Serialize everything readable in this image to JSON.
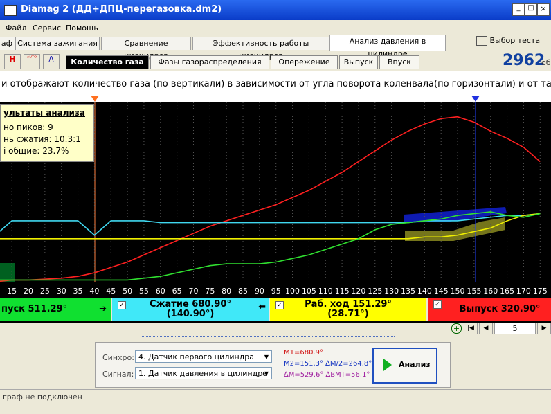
{
  "window": {
    "title": "Diamag 2 (ДД+ДПЦ-перегазовка.dm2)"
  },
  "menu": [
    "Файл",
    "Сервис",
    "Помощь"
  ],
  "tabs": [
    "аф",
    "Система зажигания",
    "Сравнение цилиндров",
    "Эффективность работы цилиндров",
    "Анализ давления в цилиндре"
  ],
  "test_button": "Выбор теста",
  "subtabs": [
    "Количество газа",
    "Фазы газораспределения",
    "Опережение",
    "Выпуск",
    "Впуск"
  ],
  "rpm": {
    "value": "2962",
    "unit": "об."
  },
  "description": "и отображают количество газа (по вертикали) в зависимости от угла поворота коленвала(по горизонтали) и от такта (ц",
  "info_box": {
    "title": "ультаты анализа",
    "lines": [
      "но пиков: 9",
      "нь сжатия: 10.3:1",
      "і общие: 23.7%"
    ]
  },
  "chart_data": {
    "type": "line",
    "x": [
      10,
      15,
      20,
      25,
      30,
      35,
      40,
      45,
      50,
      55,
      60,
      65,
      70,
      75,
      80,
      85,
      90,
      95,
      100,
      105,
      110,
      115,
      120,
      125,
      130,
      135,
      140,
      145,
      150,
      155,
      160,
      165,
      170,
      175
    ],
    "xlim": [
      11.4,
      178.3
    ],
    "ylim": [
      0,
      100
    ],
    "xticks": [
      15,
      20,
      25,
      30,
      35,
      40,
      45,
      50,
      55,
      60,
      65,
      70,
      75,
      80,
      85,
      90,
      95,
      100,
      105,
      110,
      115,
      120,
      125,
      130,
      135,
      140,
      145,
      150,
      155,
      160,
      165,
      170,
      175
    ],
    "grid": true,
    "series": [
      {
        "color": "#ff2020",
        "values": [
          0,
          1,
          1,
          1.5,
          2,
          3,
          5,
          8,
          11,
          15,
          19,
          23,
          27,
          31,
          34,
          37,
          40,
          43,
          47,
          51,
          56,
          61,
          67,
          73,
          79,
          84,
          88,
          91,
          92,
          89,
          84,
          80,
          75,
          67
        ]
      },
      {
        "color": "#40d8f0",
        "values": [
          26,
          34,
          34,
          34,
          34,
          34,
          26,
          34,
          34,
          34,
          33,
          33,
          33,
          33,
          33,
          33,
          33,
          33,
          33,
          33,
          33,
          33,
          33,
          33,
          33,
          33,
          34,
          34,
          34,
          35,
          36,
          37,
          37,
          38
        ]
      },
      {
        "color": "#f0f000",
        "values": [
          24,
          24,
          24,
          24,
          24,
          24,
          24,
          24,
          24,
          24,
          24,
          24,
          24,
          24,
          24,
          24,
          24,
          24,
          24,
          24,
          24,
          24,
          24,
          24,
          24,
          24,
          25,
          25,
          26,
          28,
          30,
          34,
          37,
          38
        ]
      },
      {
        "color": "#30e030",
        "values": [
          1,
          1,
          1,
          1,
          1,
          1,
          1,
          1,
          1,
          2,
          3,
          5,
          7,
          9,
          10,
          10,
          10,
          11,
          13,
          15,
          18,
          21,
          24,
          29,
          32,
          33,
          34,
          35,
          37,
          38,
          39,
          37,
          36,
          38
        ]
      }
    ]
  },
  "phases": [
    {
      "label": "пуск 511.29°"
    },
    {
      "label": "Сжатие 680.90°",
      "sub": "(140.90°)"
    },
    {
      "label": "Раб. ход 151.29°",
      "sub": "(28.71°)"
    },
    {
      "label": "Выпуск 320.90°"
    }
  ],
  "page_number": "5",
  "panel": {
    "sync_label": "Синхро:",
    "sync_value": "4.  Датчик первого цилиндра",
    "signal_label": "Сигнал:",
    "signal_value": "1.  Датчик давления в цилиндре",
    "m1": "M1=680.9°",
    "m2": "M2=151.3° ∆M/2=264.8°",
    "dm": "∆M=529.6° ∆BMT=56.1°",
    "button": "Анализ"
  },
  "status": "граф не подключен"
}
